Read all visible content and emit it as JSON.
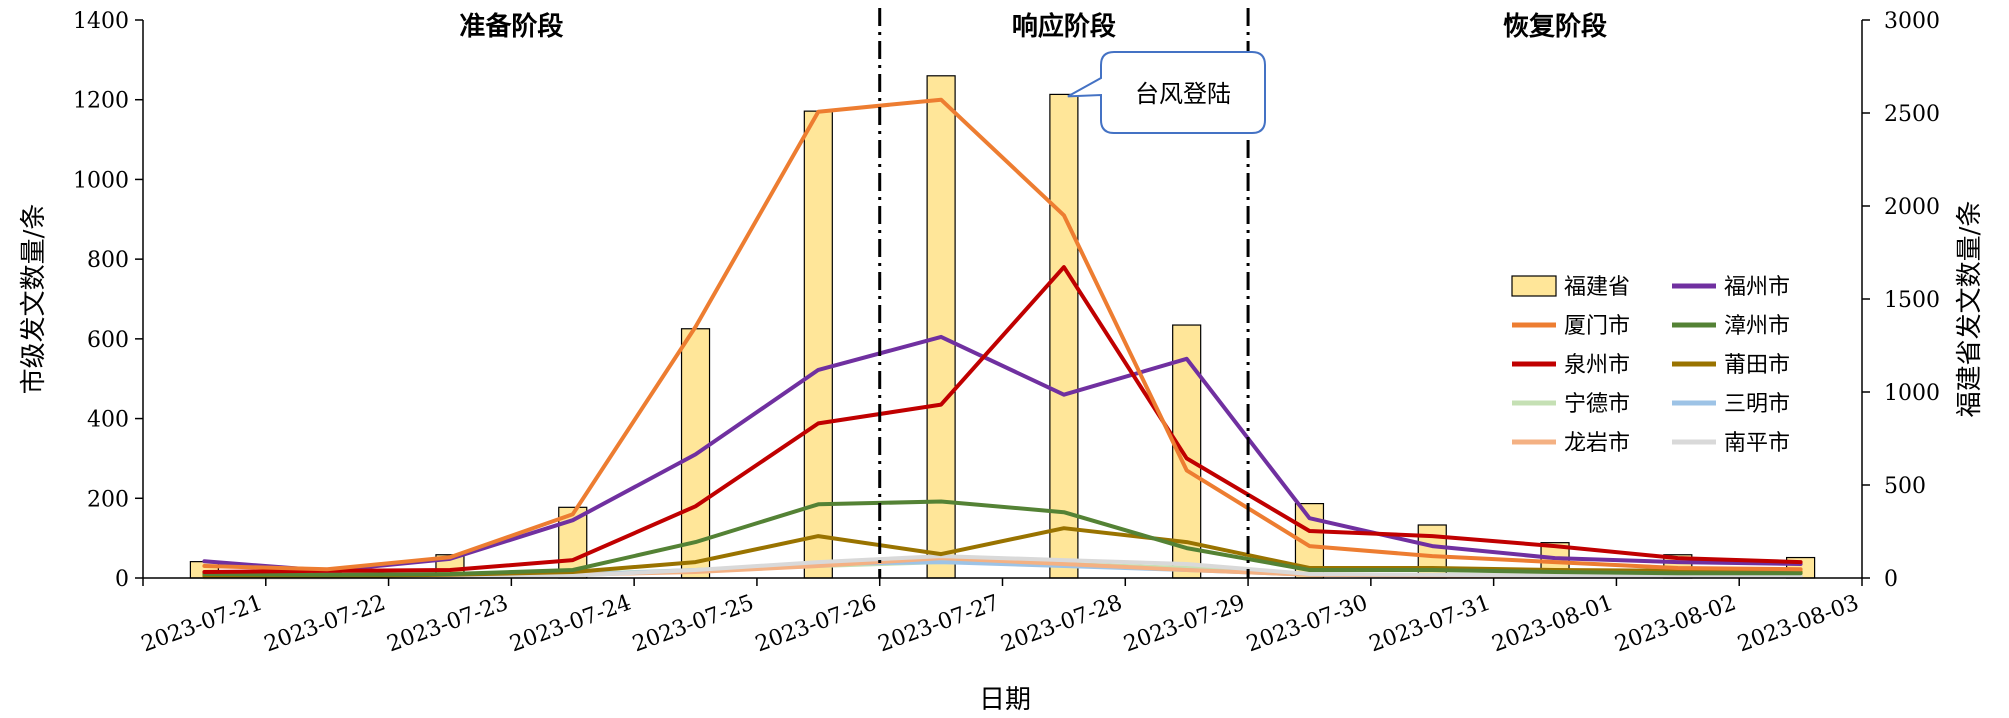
{
  "chart_data": {
    "type": "bar+line",
    "xlabel": "日期",
    "ylabel_left": "市级发文数量/条",
    "ylabel_right": "福建省发文数量/条",
    "ylim_left": [
      0,
      1400
    ],
    "ylim_right": [
      0,
      3000
    ],
    "yticks_left": [
      0,
      200,
      400,
      600,
      800,
      1000,
      1200,
      1400
    ],
    "yticks_right": [
      0,
      500,
      1000,
      1500,
      2000,
      2500,
      3000
    ],
    "categories": [
      "2023-07-21",
      "2023-07-22",
      "2023-07-23",
      "2023-07-24",
      "2023-07-25",
      "2023-07-26",
      "2023-07-27",
      "2023-07-28",
      "2023-07-29",
      "2023-07-30",
      "2023-07-31",
      "2023-08-01",
      "2023-08-02",
      "2023-08-03"
    ],
    "phases": [
      "准备阶段",
      "响应阶段",
      "恢复阶段"
    ],
    "annotation": "台风登陆",
    "bar_series": {
      "name": "福建省",
      "axis": "right",
      "color": "#FFE699",
      "values": [
        88,
        25,
        125,
        380,
        1340,
        2510,
        2700,
        2600,
        1360,
        400,
        285,
        190,
        125,
        110
      ]
    },
    "series": [
      {
        "name": "福州市",
        "color": "#7030A0",
        "values": [
          42,
          18,
          48,
          145,
          310,
          522,
          605,
          460,
          550,
          150,
          80,
          50,
          40,
          35
        ]
      },
      {
        "name": "厦门市",
        "color": "#ED7D31",
        "values": [
          30,
          22,
          52,
          160,
          630,
          1170,
          1200,
          910,
          270,
          80,
          55,
          40,
          25,
          22
        ]
      },
      {
        "name": "漳州市",
        "color": "#548235",
        "values": [
          10,
          8,
          10,
          20,
          90,
          185,
          192,
          165,
          75,
          20,
          20,
          15,
          12,
          12
        ]
      },
      {
        "name": "泉州市",
        "color": "#C00000",
        "values": [
          15,
          18,
          20,
          45,
          180,
          388,
          435,
          780,
          300,
          118,
          105,
          80,
          50,
          40
        ]
      },
      {
        "name": "莆田市",
        "color": "#997300",
        "values": [
          5,
          5,
          8,
          15,
          40,
          105,
          60,
          125,
          90,
          25,
          25,
          20,
          18,
          15
        ]
      },
      {
        "name": "宁德市",
        "color": "#C5E0B4",
        "values": [
          3,
          3,
          5,
          10,
          20,
          30,
          40,
          35,
          25,
          10,
          8,
          6,
          5,
          5
        ]
      },
      {
        "name": "三明市",
        "color": "#9DC3E6",
        "values": [
          3,
          3,
          4,
          8,
          20,
          35,
          40,
          30,
          20,
          8,
          6,
          5,
          5,
          4
        ]
      },
      {
        "name": "龙岩市",
        "color": "#F4B183",
        "values": [
          2,
          2,
          4,
          8,
          15,
          30,
          50,
          35,
          20,
          8,
          6,
          5,
          4,
          4
        ]
      },
      {
        "name": "南平市",
        "color": "#D9D9D9",
        "values": [
          2,
          2,
          3,
          6,
          20,
          40,
          55,
          45,
          35,
          10,
          8,
          6,
          5,
          4
        ]
      }
    ],
    "legend_order": [
      "福建省",
      "福州市",
      "厦门市",
      "漳州市",
      "泉州市",
      "莆田市",
      "宁德市",
      "三明市",
      "龙岩市",
      "南平市"
    ],
    "legend_position": "right",
    "grid": false
  }
}
